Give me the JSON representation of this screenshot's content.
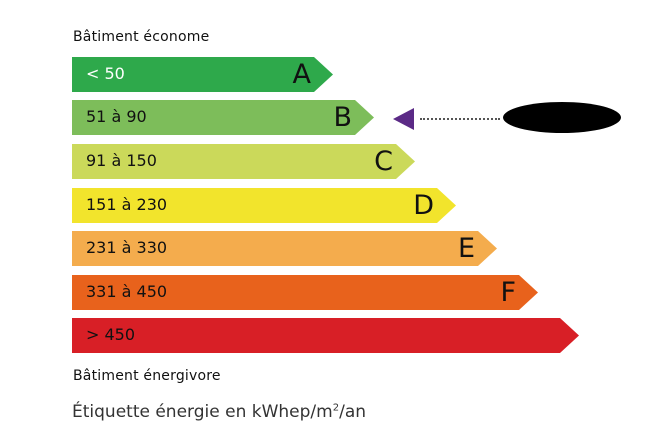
{
  "top_label": "Bâtiment économe",
  "bottom_label": "Bâtiment énergivore",
  "caption": {
    "text": "Étiquette énergie en kWhep/m",
    "sup": "2",
    "suffix": "/an"
  },
  "classes": [
    {
      "letter": "A",
      "range": "< 50",
      "color": "#2ea94b",
      "text_color": "#ffffff"
    },
    {
      "letter": "B",
      "range": "51 à 90",
      "color": "#7dbd5a",
      "text_color": "#111111"
    },
    {
      "letter": "C",
      "range": "91 à 150",
      "color": "#cbd95a",
      "text_color": "#111111"
    },
    {
      "letter": "D",
      "range": "151 à 230",
      "color": "#f2e42c",
      "text_color": "#111111"
    },
    {
      "letter": "E",
      "range": "231 à 330",
      "color": "#f4ac4d",
      "text_color": "#111111"
    },
    {
      "letter": "F",
      "range": "331 à 450",
      "color": "#e8621c",
      "text_color": "#111111"
    },
    {
      "letter": "",
      "range": "> 450",
      "color": "#d81f26",
      "text_color": "#111111"
    }
  ],
  "indicator": {
    "class": "B",
    "color": "#5b2a86",
    "value_redacted": true
  }
}
